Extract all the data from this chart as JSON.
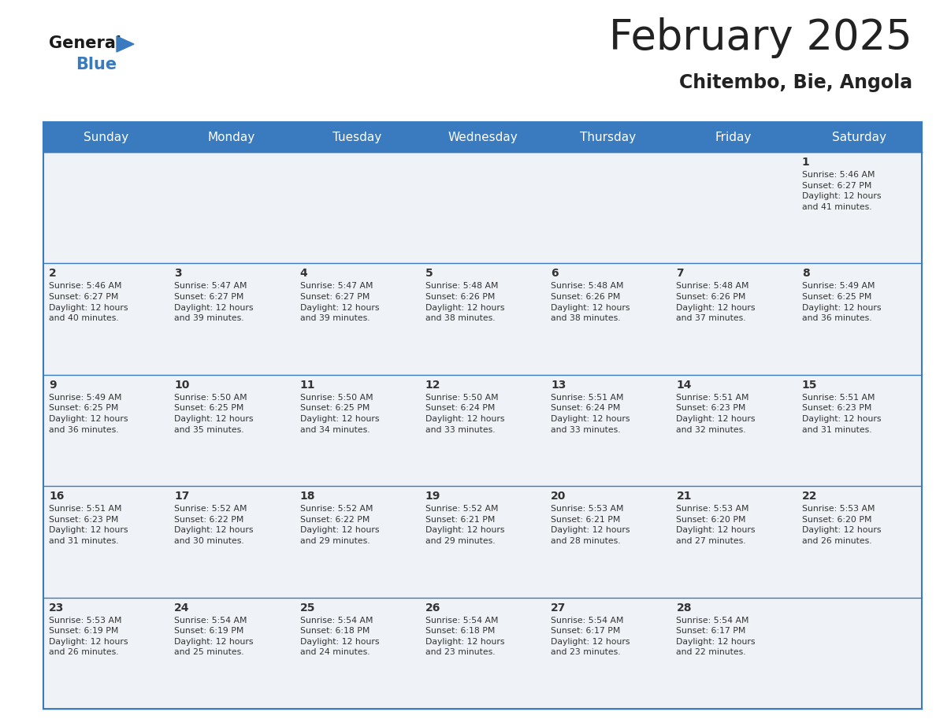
{
  "title": "February 2025",
  "subtitle": "Chitembo, Bie, Angola",
  "header_color": "#3a7bbf",
  "header_text_color": "#ffffff",
  "days_of_week": [
    "Sunday",
    "Monday",
    "Tuesday",
    "Wednesday",
    "Thursday",
    "Friday",
    "Saturday"
  ],
  "cell_bg": "#eff3f8",
  "grid_line_color": "#3a7bbf",
  "day_number_color": "#333333",
  "text_color": "#333333",
  "title_color": "#222222",
  "subtitle_color": "#222222",
  "calendar": [
    [
      null,
      null,
      null,
      null,
      null,
      null,
      {
        "day": 1,
        "sunrise": "5:46 AM",
        "sunset": "6:27 PM",
        "daylight": "12 hours\nand 41 minutes."
      }
    ],
    [
      {
        "day": 2,
        "sunrise": "5:46 AM",
        "sunset": "6:27 PM",
        "daylight": "12 hours\nand 40 minutes."
      },
      {
        "day": 3,
        "sunrise": "5:47 AM",
        "sunset": "6:27 PM",
        "daylight": "12 hours\nand 39 minutes."
      },
      {
        "day": 4,
        "sunrise": "5:47 AM",
        "sunset": "6:27 PM",
        "daylight": "12 hours\nand 39 minutes."
      },
      {
        "day": 5,
        "sunrise": "5:48 AM",
        "sunset": "6:26 PM",
        "daylight": "12 hours\nand 38 minutes."
      },
      {
        "day": 6,
        "sunrise": "5:48 AM",
        "sunset": "6:26 PM",
        "daylight": "12 hours\nand 38 minutes."
      },
      {
        "day": 7,
        "sunrise": "5:48 AM",
        "sunset": "6:26 PM",
        "daylight": "12 hours\nand 37 minutes."
      },
      {
        "day": 8,
        "sunrise": "5:49 AM",
        "sunset": "6:25 PM",
        "daylight": "12 hours\nand 36 minutes."
      }
    ],
    [
      {
        "day": 9,
        "sunrise": "5:49 AM",
        "sunset": "6:25 PM",
        "daylight": "12 hours\nand 36 minutes."
      },
      {
        "day": 10,
        "sunrise": "5:50 AM",
        "sunset": "6:25 PM",
        "daylight": "12 hours\nand 35 minutes."
      },
      {
        "day": 11,
        "sunrise": "5:50 AM",
        "sunset": "6:25 PM",
        "daylight": "12 hours\nand 34 minutes."
      },
      {
        "day": 12,
        "sunrise": "5:50 AM",
        "sunset": "6:24 PM",
        "daylight": "12 hours\nand 33 minutes."
      },
      {
        "day": 13,
        "sunrise": "5:51 AM",
        "sunset": "6:24 PM",
        "daylight": "12 hours\nand 33 minutes."
      },
      {
        "day": 14,
        "sunrise": "5:51 AM",
        "sunset": "6:23 PM",
        "daylight": "12 hours\nand 32 minutes."
      },
      {
        "day": 15,
        "sunrise": "5:51 AM",
        "sunset": "6:23 PM",
        "daylight": "12 hours\nand 31 minutes."
      }
    ],
    [
      {
        "day": 16,
        "sunrise": "5:51 AM",
        "sunset": "6:23 PM",
        "daylight": "12 hours\nand 31 minutes."
      },
      {
        "day": 17,
        "sunrise": "5:52 AM",
        "sunset": "6:22 PM",
        "daylight": "12 hours\nand 30 minutes."
      },
      {
        "day": 18,
        "sunrise": "5:52 AM",
        "sunset": "6:22 PM",
        "daylight": "12 hours\nand 29 minutes."
      },
      {
        "day": 19,
        "sunrise": "5:52 AM",
        "sunset": "6:21 PM",
        "daylight": "12 hours\nand 29 minutes."
      },
      {
        "day": 20,
        "sunrise": "5:53 AM",
        "sunset": "6:21 PM",
        "daylight": "12 hours\nand 28 minutes."
      },
      {
        "day": 21,
        "sunrise": "5:53 AM",
        "sunset": "6:20 PM",
        "daylight": "12 hours\nand 27 minutes."
      },
      {
        "day": 22,
        "sunrise": "5:53 AM",
        "sunset": "6:20 PM",
        "daylight": "12 hours\nand 26 minutes."
      }
    ],
    [
      {
        "day": 23,
        "sunrise": "5:53 AM",
        "sunset": "6:19 PM",
        "daylight": "12 hours\nand 26 minutes."
      },
      {
        "day": 24,
        "sunrise": "5:54 AM",
        "sunset": "6:19 PM",
        "daylight": "12 hours\nand 25 minutes."
      },
      {
        "day": 25,
        "sunrise": "5:54 AM",
        "sunset": "6:18 PM",
        "daylight": "12 hours\nand 24 minutes."
      },
      {
        "day": 26,
        "sunrise": "5:54 AM",
        "sunset": "6:18 PM",
        "daylight": "12 hours\nand 23 minutes."
      },
      {
        "day": 27,
        "sunrise": "5:54 AM",
        "sunset": "6:17 PM",
        "daylight": "12 hours\nand 23 minutes."
      },
      {
        "day": 28,
        "sunrise": "5:54 AM",
        "sunset": "6:17 PM",
        "daylight": "12 hours\nand 22 minutes."
      },
      null
    ]
  ]
}
